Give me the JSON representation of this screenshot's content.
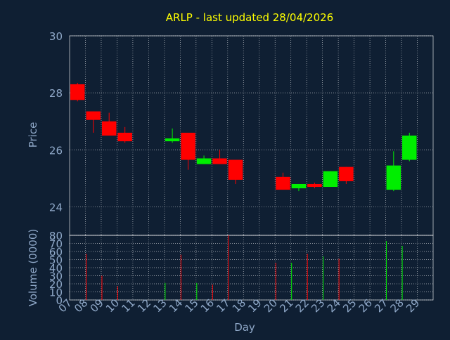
{
  "colors": {
    "background": "#0f1f33",
    "title": "#ffff00",
    "axis_text": "#8fa8c8",
    "grid": "#ffffff",
    "up": "#00ee00",
    "down": "#ff0000"
  },
  "chart_data": [
    {
      "type": "candlestick",
      "title": "ARLP - last updated 28/04/2026",
      "ylabel": "Price",
      "ylim": [
        23,
        30
      ],
      "yticks": [
        24,
        26,
        28,
        30
      ],
      "grid": true,
      "days": [
        "07",
        "08",
        "09",
        "10",
        "11",
        "12",
        "13",
        "14",
        "15",
        "16",
        "17",
        "18",
        "19",
        "20",
        "21",
        "22",
        "23",
        "24",
        "25",
        "26",
        "27",
        "28",
        "29"
      ],
      "candles": [
        {
          "day": "07",
          "open": 28.3,
          "high": 28.35,
          "low": 27.7,
          "close": 27.75
        },
        {
          "day": "08",
          "open": 27.35,
          "high": 27.35,
          "low": 26.6,
          "close": 27.05
        },
        {
          "day": "09",
          "open": 27.0,
          "high": 27.3,
          "low": 26.5,
          "close": 26.5
        },
        {
          "day": "10",
          "open": 26.6,
          "high": 26.8,
          "low": 26.25,
          "close": 26.3
        },
        {
          "day": "13",
          "open": 26.3,
          "high": 26.75,
          "low": 26.25,
          "close": 26.4
        },
        {
          "day": "14",
          "open": 26.6,
          "high": 26.6,
          "low": 25.3,
          "close": 25.65
        },
        {
          "day": "15",
          "open": 25.5,
          "high": 25.8,
          "low": 25.5,
          "close": 25.7
        },
        {
          "day": "16",
          "open": 25.7,
          "high": 26.0,
          "low": 25.5,
          "close": 25.5
        },
        {
          "day": "17",
          "open": 25.65,
          "high": 25.65,
          "low": 24.8,
          "close": 24.95
        },
        {
          "day": "20",
          "open": 25.05,
          "high": 25.2,
          "low": 24.6,
          "close": 24.6
        },
        {
          "day": "21",
          "open": 24.65,
          "high": 24.8,
          "low": 24.55,
          "close": 24.8
        },
        {
          "day": "22",
          "open": 24.8,
          "high": 24.85,
          "low": 24.65,
          "close": 24.7
        },
        {
          "day": "23",
          "open": 24.7,
          "high": 25.25,
          "low": 24.7,
          "close": 25.25
        },
        {
          "day": "24",
          "open": 25.4,
          "high": 25.4,
          "low": 24.8,
          "close": 24.9
        },
        {
          "day": "27",
          "open": 24.6,
          "high": 25.95,
          "low": 24.55,
          "close": 25.45
        },
        {
          "day": "28",
          "open": 25.65,
          "high": 26.6,
          "low": 25.6,
          "close": 26.5
        }
      ]
    },
    {
      "type": "bar",
      "ylabel": "Volume (0000)",
      "xlabel": "Day",
      "ylim": [
        0,
        80
      ],
      "yticks": [
        0,
        10,
        20,
        30,
        40,
        50,
        60,
        70,
        80
      ],
      "grid": true,
      "days": [
        "07",
        "08",
        "09",
        "10",
        "11",
        "12",
        "13",
        "14",
        "15",
        "16",
        "17",
        "18",
        "19",
        "20",
        "21",
        "22",
        "23",
        "24",
        "25",
        "26",
        "27",
        "28",
        "29"
      ],
      "volumes": [
        {
          "day": "08",
          "value": 57,
          "dir": "down"
        },
        {
          "day": "09",
          "value": 30,
          "dir": "down"
        },
        {
          "day": "10",
          "value": 17,
          "dir": "down"
        },
        {
          "day": "13",
          "value": 21,
          "dir": "up"
        },
        {
          "day": "14",
          "value": 56,
          "dir": "down"
        },
        {
          "day": "15",
          "value": 21,
          "dir": "up"
        },
        {
          "day": "16",
          "value": 19,
          "dir": "down"
        },
        {
          "day": "17",
          "value": 80,
          "dir": "down"
        },
        {
          "day": "20",
          "value": 46,
          "dir": "down"
        },
        {
          "day": "21",
          "value": 46,
          "dir": "up"
        },
        {
          "day": "22",
          "value": 57,
          "dir": "down"
        },
        {
          "day": "23",
          "value": 54,
          "dir": "up"
        },
        {
          "day": "24",
          "value": 51,
          "dir": "down"
        },
        {
          "day": "27",
          "value": 73,
          "dir": "up"
        },
        {
          "day": "28",
          "value": 67,
          "dir": "up"
        }
      ]
    }
  ]
}
